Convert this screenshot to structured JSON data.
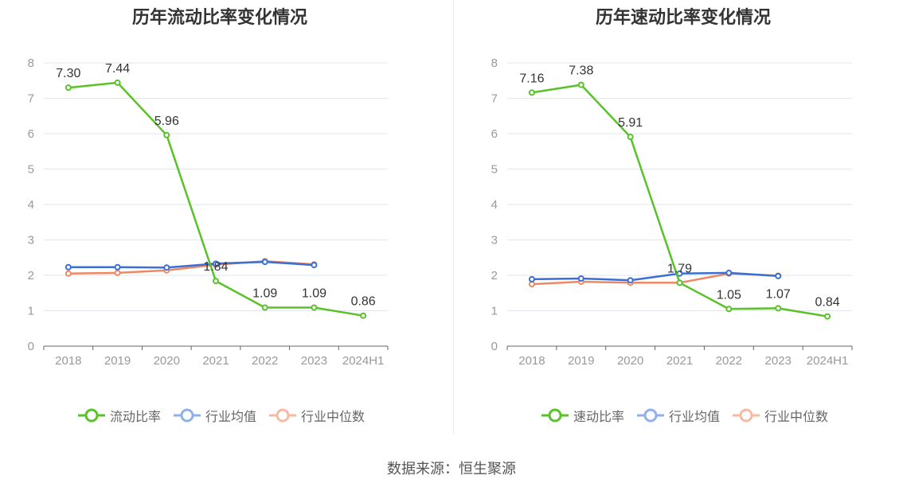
{
  "chart_data": [
    {
      "type": "line",
      "title": "历年流动比率变化情况",
      "categories": [
        "2018",
        "2019",
        "2020",
        "2021",
        "2022",
        "2023",
        "2024H1"
      ],
      "ylim": [
        0,
        8
      ],
      "yticks": [
        0,
        1,
        2,
        3,
        4,
        5,
        6,
        7,
        8
      ],
      "grid": true,
      "legend_position": "bottom",
      "series": [
        {
          "name": "流动比率",
          "color": "#5ac229",
          "values": [
            7.3,
            7.44,
            5.96,
            1.84,
            1.09,
            1.09,
            0.86
          ],
          "labels": [
            "7.30",
            "7.44",
            "5.96",
            "1.84",
            "1.09",
            "1.09",
            "0.86"
          ]
        },
        {
          "name": "行业均值",
          "color": "#3b6fd4",
          "legend_color": "#8fb0ea",
          "values": [
            2.23,
            2.23,
            2.22,
            2.33,
            2.38,
            2.29,
            null
          ]
        },
        {
          "name": "行业中位数",
          "color": "#f08763",
          "legend_color": "#f8b9a3",
          "values": [
            2.05,
            2.07,
            2.14,
            2.3,
            2.4,
            2.31,
            null
          ]
        }
      ]
    },
    {
      "type": "line",
      "title": "历年速动比率变化情况",
      "categories": [
        "2018",
        "2019",
        "2020",
        "2021",
        "2022",
        "2023",
        "2024H1"
      ],
      "ylim": [
        0,
        8
      ],
      "yticks": [
        0,
        1,
        2,
        3,
        4,
        5,
        6,
        7,
        8
      ],
      "grid": true,
      "legend_position": "bottom",
      "series": [
        {
          "name": "速动比率",
          "color": "#5ac229",
          "values": [
            7.16,
            7.38,
            5.91,
            1.79,
            1.05,
            1.07,
            0.84
          ],
          "labels": [
            "7.16",
            "7.38",
            "5.91",
            "1.79",
            "1.05",
            "1.07",
            "0.84"
          ]
        },
        {
          "name": "行业均值",
          "color": "#3b6fd4",
          "legend_color": "#8fb0ea",
          "values": [
            1.89,
            1.91,
            1.86,
            2.05,
            2.07,
            1.98,
            null
          ]
        },
        {
          "name": "行业中位数",
          "color": "#f08763",
          "legend_color": "#f8b9a3",
          "values": [
            1.75,
            1.82,
            1.79,
            1.79,
            2.05,
            1.99,
            null
          ]
        }
      ]
    }
  ],
  "source": "数据来源：恒生聚源"
}
